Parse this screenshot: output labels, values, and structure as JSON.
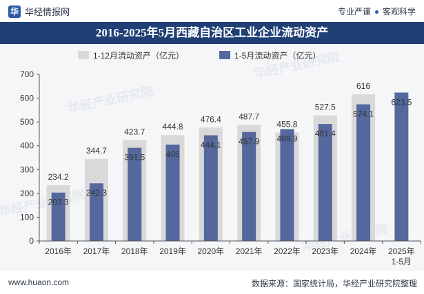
{
  "header": {
    "brand": "华经情报网",
    "right_left": "专业严谨",
    "right_right": "客观科学"
  },
  "footer": {
    "url": "www.huaon.com",
    "source": "数据来源：国家统计局，华经产业研究院整理"
  },
  "watermark": "华经产业研究院",
  "colors": {
    "series1": "#d9d9d9",
    "series2": "#55689d",
    "title_bg": "#1f3f75"
  },
  "chart_data": {
    "type": "bar",
    "title": "2016-2025年5月西藏自治区工业企业流动资产",
    "categories": [
      "2016年",
      "2017年",
      "2018年",
      "2019年",
      "2020年",
      "2021年",
      "2022年",
      "2023年",
      "2024年",
      "2025年\n1-5月"
    ],
    "series": [
      {
        "name": "1-12月流动资产（亿元）",
        "values": [
          234.2,
          344.7,
          423.7,
          444.8,
          476.4,
          487.7,
          455.8,
          527.5,
          616,
          null
        ]
      },
      {
        "name": "1-5月流动资产（亿元）",
        "values": [
          203.3,
          242.3,
          391.5,
          405,
          444.1,
          457.9,
          469.9,
          491.4,
          574.1,
          623.5
        ]
      }
    ],
    "ylim": [
      0,
      700
    ],
    "yticks": [
      0,
      100,
      200,
      300,
      400,
      500,
      600,
      700
    ],
    "legend": "top-center",
    "grid": false
  }
}
